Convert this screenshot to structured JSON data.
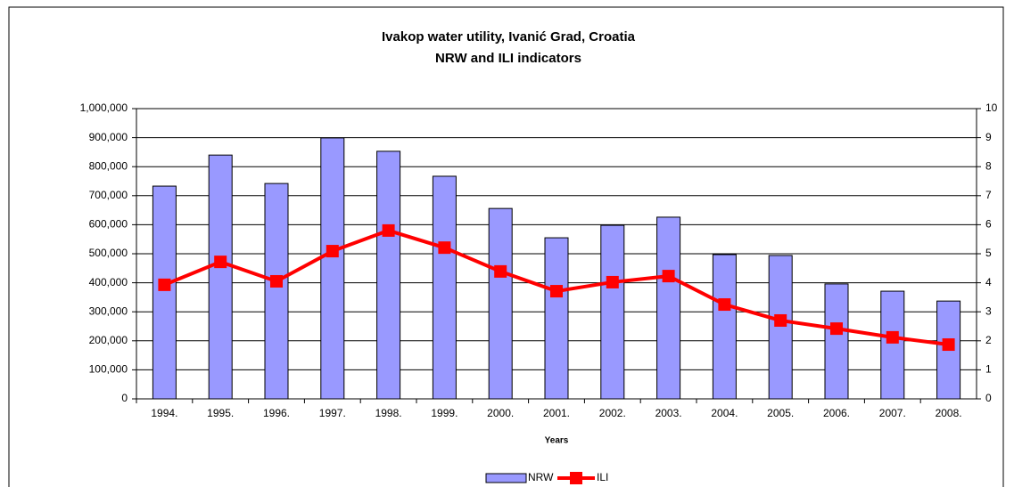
{
  "chart_data": {
    "type": "bar_line",
    "title": "Ivakop water utility, Ivanić Grad, Croatia",
    "subtitle": "NRW and ILI indicators",
    "x_label": "Years",
    "categories": [
      "1994.",
      "1995.",
      "1996.",
      "1997.",
      "1998.",
      "1999.",
      "2000.",
      "2001.",
      "2002.",
      "2003.",
      "2004.",
      "2005.",
      "2006.",
      "2007.",
      "2008."
    ],
    "series": [
      {
        "name": "NRW",
        "type": "bar",
        "color": "#9999ff",
        "values": [
          733000,
          840000,
          742000,
          899000,
          853000,
          767000,
          656000,
          555000,
          598000,
          626000,
          497000,
          494000,
          396000,
          371000,
          337000
        ]
      },
      {
        "name": "ILI",
        "type": "line",
        "axis": "y2",
        "color": "#ff0000",
        "values": [
          3.93,
          4.72,
          4.05,
          5.09,
          5.8,
          5.21,
          4.39,
          3.71,
          4.02,
          4.23,
          3.25,
          2.7,
          2.42,
          2.12,
          1.87
        ]
      }
    ],
    "ylim": [
      0,
      1000000
    ],
    "yticks": [
      0,
      {
        "value": 100000,
        "label": "100,000"
      },
      {
        "value": 200000,
        "label": "200,000"
      },
      {
        "value": 300000,
        "label": "300,000"
      },
      {
        "value": 400000,
        "label": "400,000"
      },
      {
        "value": 500000,
        "label": "500,000"
      },
      {
        "value": 600000,
        "label": "600,000"
      },
      {
        "value": 700000,
        "label": "700,000"
      },
      {
        "value": 800000,
        "label": "800,000"
      },
      {
        "value": 900000,
        "label": "900,000"
      },
      {
        "value": 1000000,
        "label": "1,000,000"
      }
    ],
    "y2lim": [
      0,
      10
    ],
    "y2ticks": [
      0,
      1,
      2,
      3,
      4,
      5,
      6,
      7,
      8,
      9,
      10
    ],
    "grid": true,
    "legend": "bottom"
  }
}
